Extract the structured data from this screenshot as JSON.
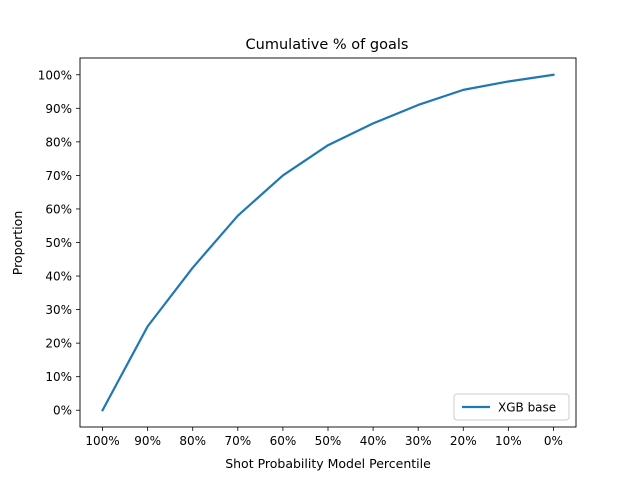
{
  "chart_data": {
    "type": "line",
    "title": "Cumulative % of goals",
    "xlabel": "Shot Probability Model Percentile",
    "ylabel": "Proportion",
    "x_ticks": [
      "100%",
      "90%",
      "80%",
      "70%",
      "60%",
      "50%",
      "40%",
      "30%",
      "20%",
      "10%",
      "0%"
    ],
    "y_ticks": [
      "0%",
      "10%",
      "20%",
      "30%",
      "40%",
      "50%",
      "60%",
      "70%",
      "80%",
      "90%",
      "100%"
    ],
    "xlim": [
      100,
      0
    ],
    "ylim": [
      0,
      100
    ],
    "x_axis_reversed": true,
    "grid": false,
    "legend_position": "bottom-right",
    "series": [
      {
        "name": "XGB base",
        "color": "#1f77b4",
        "x": [
          100,
          90,
          80,
          70,
          60,
          50,
          40,
          30,
          20,
          10,
          0
        ],
        "values": [
          0,
          25,
          42.5,
          58,
          70,
          79,
          85.5,
          91,
          95.5,
          98,
          100
        ]
      }
    ]
  }
}
